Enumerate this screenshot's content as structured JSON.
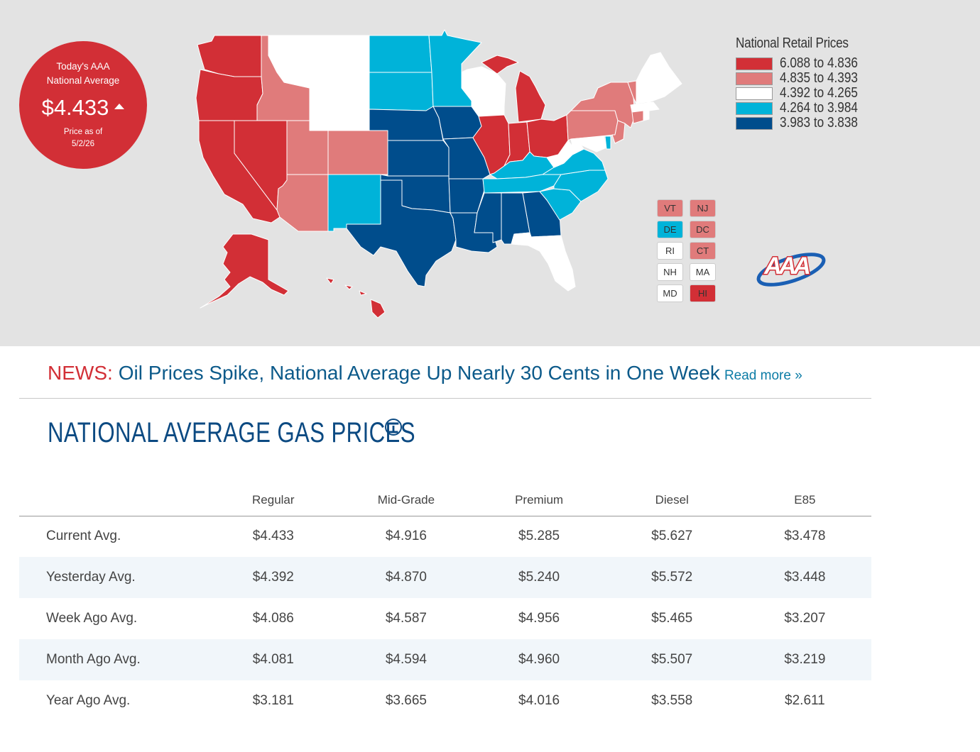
{
  "badge": {
    "line1": "Today's AAA",
    "line2": "National Average",
    "price": "$4.433",
    "date_label": "Price as of",
    "date": "5/2/26",
    "bg_color": "#d22f36"
  },
  "legend": {
    "title": "National Retail Prices",
    "items": [
      {
        "range": "6.088 to 4.836",
        "color": "#d22f36"
      },
      {
        "range": "4.835 to 4.393",
        "color": "#e07b7b"
      },
      {
        "range": "4.392 to 4.265",
        "color": "#ffffff"
      },
      {
        "range": "4.264 to 3.984",
        "color": "#00b3d9"
      },
      {
        "range": "3.983 to 3.838",
        "color": "#004d8c"
      }
    ]
  },
  "small_states": [
    {
      "code": "VT",
      "color": "#e07b7b"
    },
    {
      "code": "NJ",
      "color": "#e07b7b"
    },
    {
      "code": "DE",
      "color": "#00b3d9"
    },
    {
      "code": "DC",
      "color": "#e07b7b"
    },
    {
      "code": "RI",
      "color": "#ffffff"
    },
    {
      "code": "CT",
      "color": "#e07b7b"
    },
    {
      "code": "NH",
      "color": "#ffffff"
    },
    {
      "code": "MA",
      "color": "#ffffff"
    },
    {
      "code": "MD",
      "color": "#ffffff"
    },
    {
      "code": "HI",
      "color": "#d22f36"
    }
  ],
  "news": {
    "label": "NEWS:",
    "headline": "Oil Prices Spike, National Average Up Nearly 30 Cents in One Week",
    "read_more": "Read more »"
  },
  "section": {
    "title": "NATIONAL AVERAGE GAS PRICES",
    "info_icon": "info-circle-icon"
  },
  "table": {
    "columns": [
      "",
      "Regular",
      "Mid-Grade",
      "Premium",
      "Diesel",
      "E85"
    ],
    "rows": [
      {
        "label": "Current Avg.",
        "values": [
          "$4.433",
          "$4.916",
          "$5.285",
          "$5.627",
          "$3.478"
        ]
      },
      {
        "label": "Yesterday Avg.",
        "values": [
          "$4.392",
          "$4.870",
          "$5.240",
          "$5.572",
          "$3.448"
        ]
      },
      {
        "label": "Week Ago Avg.",
        "values": [
          "$4.086",
          "$4.587",
          "$4.956",
          "$5.465",
          "$3.207"
        ]
      },
      {
        "label": "Month Ago Avg.",
        "values": [
          "$4.081",
          "$4.594",
          "$4.960",
          "$5.507",
          "$3.219"
        ]
      },
      {
        "label": "Year Ago Avg.",
        "values": [
          "$3.181",
          "$3.665",
          "$4.016",
          "$3.558",
          "$2.611"
        ]
      }
    ]
  },
  "logo": {
    "text": "AAA"
  }
}
